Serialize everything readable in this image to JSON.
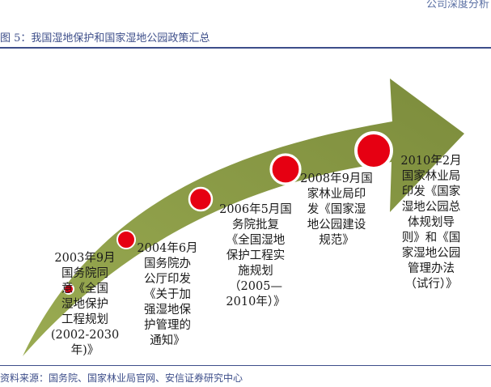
{
  "header_fragment": "公司深度分析",
  "title": "图 5：我国湿地保护和国家湿地公园政策汇总",
  "colors": {
    "arrow": "#7c8c3c",
    "arrow_light": "#9aab52",
    "dot_fill": "#e60012",
    "dot_ring": "#ffffff",
    "rule": "#3d4e8a"
  },
  "events": [
    {
      "lines": [
        "2003年9月",
        "国务院同",
        "意《全国",
        "湿地保护",
        "工程规划",
        "(2002-2030",
        "年)》"
      ]
    },
    {
      "lines": [
        "2004年6月",
        "国务院办",
        "公厅印发",
        "《关于加",
        "强湿地保",
        "护管理的",
        "通知》"
      ]
    },
    {
      "lines": [
        "2006年5月国",
        "务院批复",
        "《全国湿地",
        "保护工程实",
        "施规划",
        "（2005—",
        "2010年）》"
      ]
    },
    {
      "lines": [
        "2008年9月国",
        "家林业局印",
        "发《国家湿",
        "地公园建设",
        "规范》"
      ]
    },
    {
      "lines": [
        "2010年2月",
        "国家林业局",
        "印发《国家",
        "湿地公园总",
        "体规划导",
        "则》和《国",
        "家湿地公园",
        "管理办法",
        "（试行）》"
      ]
    }
  ],
  "source": "资料来源：国务院、国家林业局官网、安信证券研究中心"
}
